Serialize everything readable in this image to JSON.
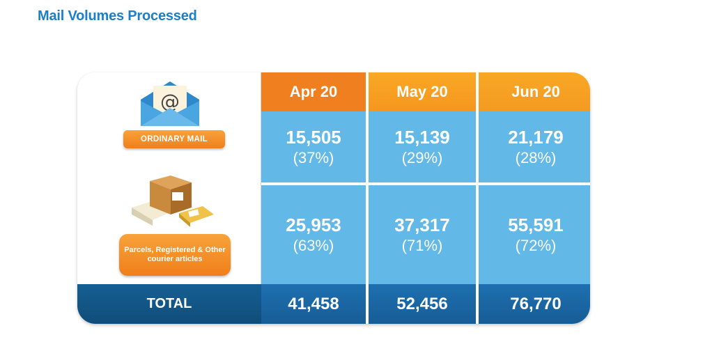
{
  "page_title": "Mail Volumes Processed",
  "labels": {
    "ordinary_mail": "ORDINARY MAIL",
    "parcels": "Parcels, Registered & Other courier articles",
    "total": "TOTAL"
  },
  "icons": {
    "mail": "envelope-at-icon",
    "parcels": "parcels-boxes-icon"
  },
  "colors": {
    "title": "#1a7fc8",
    "header_apr": "#f07f1f",
    "header_other": "#f9a825",
    "cell": "#62b9e7",
    "total_row": "#175d96",
    "badge": "#f08a25"
  },
  "chart_data": {
    "type": "table",
    "title": "Mail Volumes Processed",
    "columns": [
      "Apr 20",
      "May 20",
      "Jun 20"
    ],
    "rows": [
      {
        "label": "ORDINARY MAIL",
        "values": [
          "15,505",
          "15,139",
          "21,179"
        ],
        "shares": [
          "(37%)",
          "(29%)",
          "(28%)"
        ]
      },
      {
        "label": "Parcels, Registered & Other courier articles",
        "values": [
          "25,953",
          "37,317",
          "55,591"
        ],
        "shares": [
          "(63%)",
          "(71%)",
          "(72%)"
        ]
      }
    ],
    "totals": [
      "41,458",
      "52,456",
      "76,770"
    ]
  }
}
